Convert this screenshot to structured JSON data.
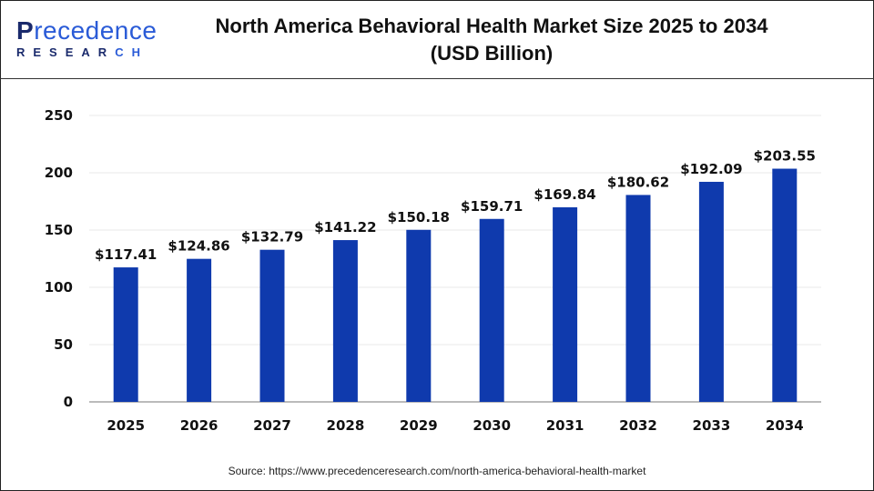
{
  "logo": {
    "text_top": "Precedence",
    "text_bottom": "RESEARCH"
  },
  "title_line1": "North America Behavioral Health Market Size 2025 to 2034",
  "title_line2": "(USD Billion)",
  "source": "Source: https://www.precedenceresearch.com/north-america-behavioral-health-market",
  "colors": {
    "bar": "#0f3aad",
    "grid": "#e8e8e8",
    "axis": "#bbbbbb"
  },
  "chart_data": {
    "type": "bar",
    "title": "North America Behavioral Health Market Size 2025 to 2034 (USD Billion)",
    "categories": [
      "2025",
      "2026",
      "2027",
      "2028",
      "2029",
      "2030",
      "2031",
      "2032",
      "2033",
      "2034"
    ],
    "values": [
      117.41,
      124.86,
      132.79,
      141.22,
      150.18,
      159.71,
      169.84,
      180.62,
      192.09,
      203.55
    ],
    "data_labels": [
      "$117.41",
      "$124.86",
      "$132.79",
      "$141.22",
      "$150.18",
      "$159.71",
      "$169.84",
      "$180.62",
      "$192.09",
      "$203.55"
    ],
    "yticks": [
      0,
      50,
      100,
      150,
      200,
      250
    ],
    "ylim": [
      0,
      250
    ],
    "grid": true,
    "xlabel": "",
    "ylabel": ""
  }
}
